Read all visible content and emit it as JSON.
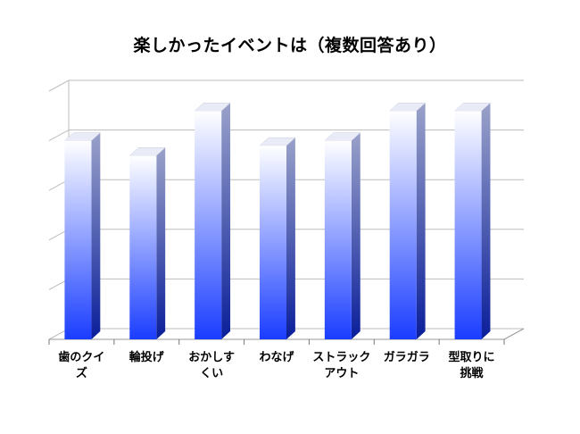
{
  "chart_data": {
    "type": "bar",
    "title": "楽しかったイベントは（複数回答あり）",
    "categories": [
      "歯のクイ\nズ",
      "輪投げ",
      "おかしす\nくい",
      "わなげ",
      "ストラック\nアウト",
      "ガラガラ",
      "型取りに\n挑戦"
    ],
    "values": [
      4.0,
      3.7,
      4.6,
      3.9,
      4.0,
      4.6,
      4.6
    ],
    "ylim": [
      0,
      5
    ],
    "grid": true,
    "legend": "none",
    "xlabel": "",
    "ylabel": "",
    "colors": {
      "bar_top": "#ffffff",
      "bar_bottom": "#1a3dff",
      "side_top": "#9aa2c9",
      "side_bottom": "#0a1e9a",
      "grid": "#bdbdbd"
    }
  }
}
